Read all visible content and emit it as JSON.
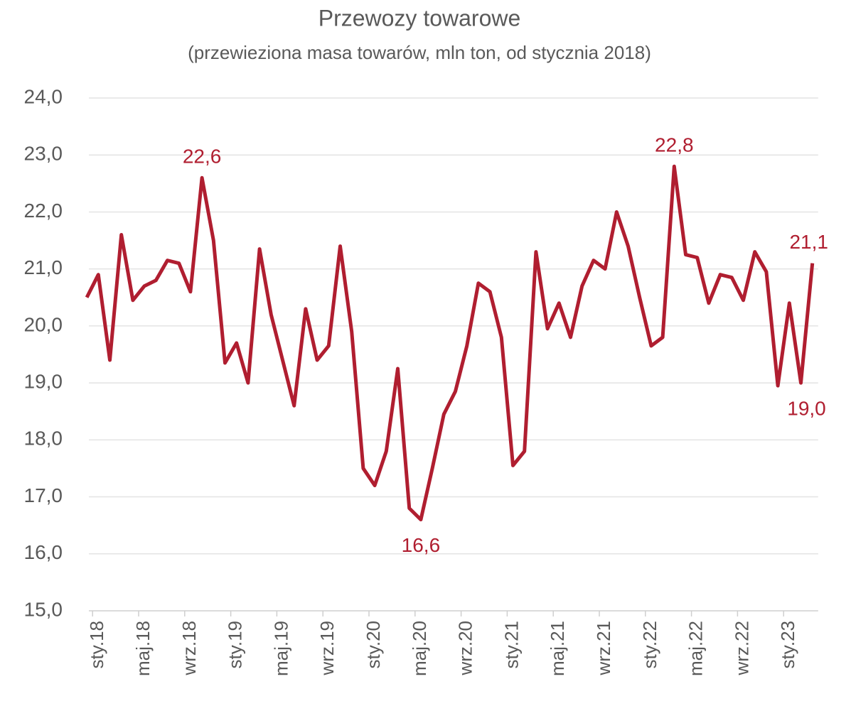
{
  "chart_data": {
    "type": "line",
    "title": "Przewozy towarowe",
    "subtitle": "(przewieziona masa towarów, mln ton, od stycznia 2018)",
    "categories": [
      null,
      "sty.18",
      null,
      null,
      null,
      "maj.18",
      null,
      null,
      null,
      "wrz.18",
      null,
      null,
      null,
      "sty.19",
      null,
      null,
      null,
      "maj.19",
      null,
      null,
      null,
      "wrz.19",
      null,
      null,
      null,
      "sty.20",
      null,
      null,
      null,
      "maj.20",
      null,
      null,
      null,
      "wrz.20",
      null,
      null,
      null,
      "sty.21",
      null,
      null,
      null,
      "maj.21",
      null,
      null,
      null,
      "wrz.21",
      null,
      null,
      null,
      "sty.22",
      null,
      null,
      null,
      "maj.22",
      null,
      null,
      null,
      "wrz.22",
      null,
      null,
      null,
      "sty.23",
      null,
      null
    ],
    "series": [
      {
        "name": "Przewozy towarowe",
        "color": "#b01e30",
        "values": [
          20.5,
          20.9,
          19.4,
          21.6,
          20.45,
          20.7,
          20.8,
          21.15,
          21.1,
          20.6,
          22.6,
          21.5,
          19.35,
          19.7,
          19.0,
          21.35,
          20.2,
          19.4,
          18.6,
          20.3,
          19.4,
          19.65,
          21.4,
          19.9,
          17.5,
          17.2,
          17.8,
          19.25,
          16.8,
          16.6,
          17.5,
          18.45,
          18.85,
          19.65,
          20.75,
          20.6,
          19.8,
          17.55,
          17.8,
          21.3,
          19.95,
          20.4,
          19.8,
          20.7,
          21.15,
          21.0,
          22.0,
          21.4,
          20.5,
          19.65,
          19.8,
          22.8,
          21.25,
          21.2,
          20.4,
          20.9,
          20.85,
          20.45,
          21.3,
          20.95,
          18.95,
          20.4,
          19.0,
          21.1
        ],
        "value_labels": [
          null,
          null,
          null,
          null,
          null,
          null,
          null,
          null,
          null,
          null,
          "22,6",
          null,
          null,
          null,
          null,
          null,
          null,
          null,
          null,
          null,
          null,
          null,
          null,
          null,
          null,
          null,
          null,
          null,
          null,
          "16,6",
          null,
          null,
          null,
          null,
          null,
          null,
          null,
          null,
          null,
          null,
          null,
          null,
          null,
          null,
          null,
          null,
          null,
          null,
          null,
          null,
          null,
          "22,8",
          null,
          null,
          null,
          null,
          null,
          null,
          null,
          null,
          null,
          null,
          "19,0",
          "21,1"
        ]
      }
    ],
    "ylim": [
      15,
      24
    ],
    "yticks": [
      {
        "value": 15,
        "label": "15,0"
      },
      {
        "value": 16,
        "label": "16,0"
      },
      {
        "value": 17,
        "label": "17,0"
      },
      {
        "value": 18,
        "label": "18,0"
      },
      {
        "value": 19,
        "label": "19,0"
      },
      {
        "value": 20,
        "label": "20,0"
      },
      {
        "value": 21,
        "label": "21,0"
      },
      {
        "value": 22,
        "label": "22,0"
      },
      {
        "value": 23,
        "label": "23,0"
      },
      {
        "value": 24,
        "label": "24,0"
      }
    ],
    "grid": true
  }
}
